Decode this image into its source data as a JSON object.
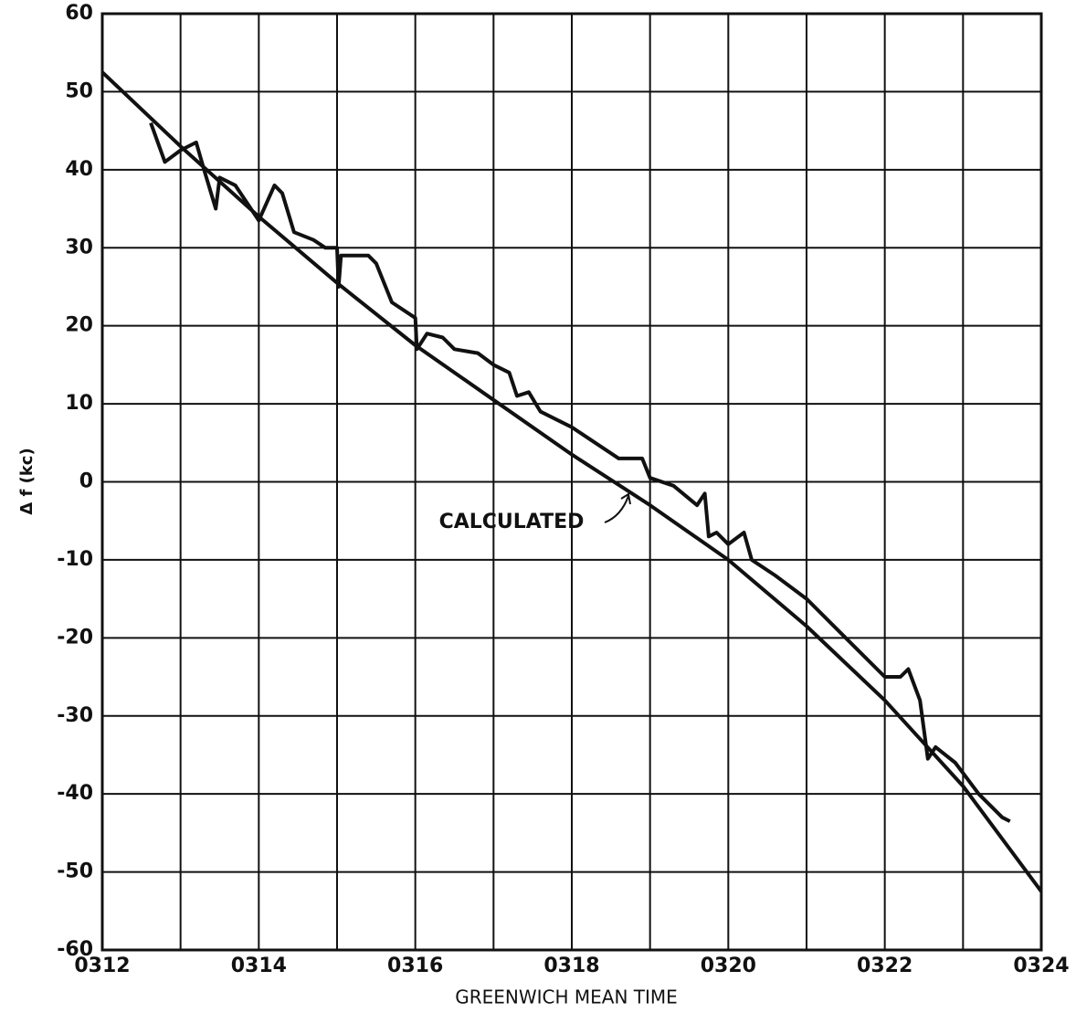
{
  "chart_data": {
    "type": "line",
    "xlabel": "GREENWICH MEAN TIME",
    "ylabel": "Δ f (kc)",
    "annotation": "CALCULATED",
    "xlim": [
      312,
      324
    ],
    "xticks": [
      {
        "value": 312,
        "label": "0312"
      },
      {
        "value": 314,
        "label": "0314"
      },
      {
        "value": 316,
        "label": "0316"
      },
      {
        "value": 318,
        "label": "0318"
      },
      {
        "value": 320,
        "label": "0320"
      },
      {
        "value": 322,
        "label": "0322"
      },
      {
        "value": 324,
        "label": "0324"
      }
    ],
    "x_minor_gridlines": [
      313,
      315,
      317,
      319,
      321,
      323
    ],
    "ylim": [
      -60,
      60
    ],
    "yticks": [
      -60,
      -50,
      -40,
      -30,
      -20,
      -10,
      0,
      10,
      20,
      30,
      40,
      50,
      60
    ],
    "grid": true,
    "series": [
      {
        "color": "#111111",
        "x": [
          312.62,
          312.8,
          313,
          313.2,
          313.3,
          313.45,
          313.5,
          313.7,
          314,
          314.2,
          314.3,
          314.45,
          314.7,
          314.85,
          315,
          315.02,
          315.05,
          315.4,
          315.5,
          315.7,
          316,
          316.02,
          316.15,
          316.35,
          316.5,
          316.8,
          317,
          317.2,
          317.3,
          317.45,
          317.6,
          317.8,
          318,
          318.3,
          318.6,
          318.9,
          319,
          319.3,
          319.6,
          319.7,
          319.75,
          319.85,
          320,
          320.2,
          320.3,
          320.6,
          321,
          321.5,
          322,
          322.2,
          322.3,
          322.45,
          322.55,
          322.65,
          322.9,
          323.2,
          323.5,
          323.6
        ],
        "values": [
          46,
          41,
          42.5,
          43.5,
          40,
          35,
          39,
          38,
          33.5,
          38,
          37,
          32,
          31,
          30,
          30,
          25,
          29,
          29,
          28,
          23,
          21,
          17,
          19,
          18.5,
          17,
          16.5,
          15,
          14,
          11,
          11.5,
          9,
          8,
          7,
          5,
          3,
          3,
          0.5,
          -0.5,
          -3,
          -1.5,
          -7,
          -6.5,
          -8,
          -6.5,
          -10,
          -12,
          -15,
          -20,
          -25,
          -25,
          -24,
          -28,
          -35.5,
          -34,
          -36,
          -40,
          -43,
          -43.5
        ]
      },
      {
        "color": "#111111",
        "x": [
          312,
          313,
          314,
          315,
          316,
          317,
          318,
          319,
          320,
          321,
          322,
          323,
          324
        ],
        "values": [
          52.5,
          43,
          34,
          25.5,
          17.5,
          10.5,
          3.5,
          -3,
          -10,
          -18.5,
          -28,
          -39,
          -52.5
        ]
      }
    ]
  }
}
